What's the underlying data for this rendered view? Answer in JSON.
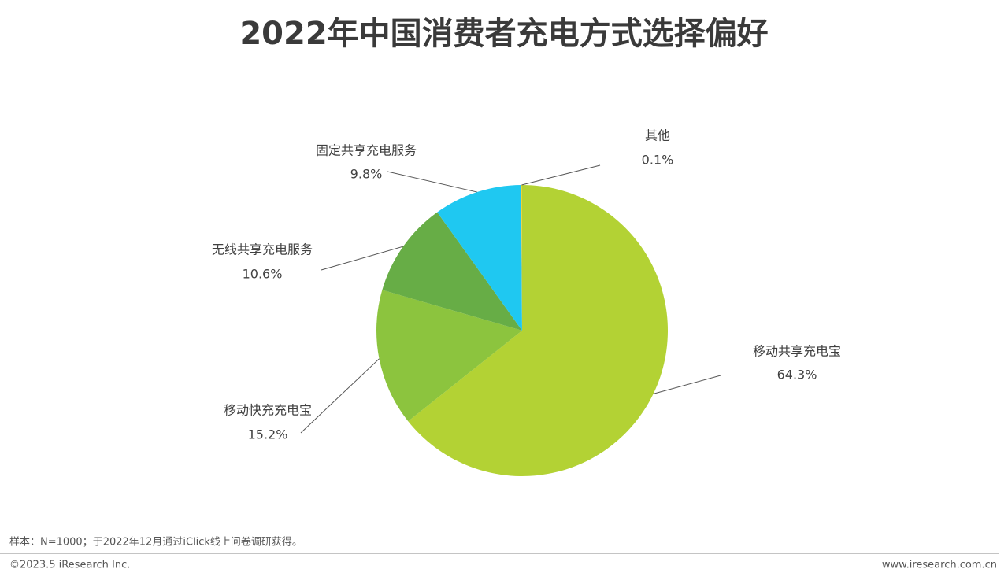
{
  "chart_data": {
    "type": "pie",
    "title": "2022年中国消费者充电方式选择偏好",
    "categories": [
      "移动共享充电宝",
      "移动快充充电宝",
      "无线共享充电服务",
      "固定共享充电服务",
      "其他"
    ],
    "values": [
      64.3,
      15.2,
      10.6,
      9.8,
      0.1
    ],
    "value_labels": [
      "64.3%",
      "15.2%",
      "10.6%",
      "9.8%",
      "0.1%"
    ],
    "colors": [
      "#b3d234",
      "#8cc43e",
      "#67ad46",
      "#1fc8f1",
      "#e8d23a"
    ]
  },
  "footer": {
    "note": "样本：N=1000；于2022年12月通过iClick线上问卷调研获得。",
    "copyright": "©2023.5 iResearch Inc.",
    "website": "www.iresearch.com.cn"
  }
}
